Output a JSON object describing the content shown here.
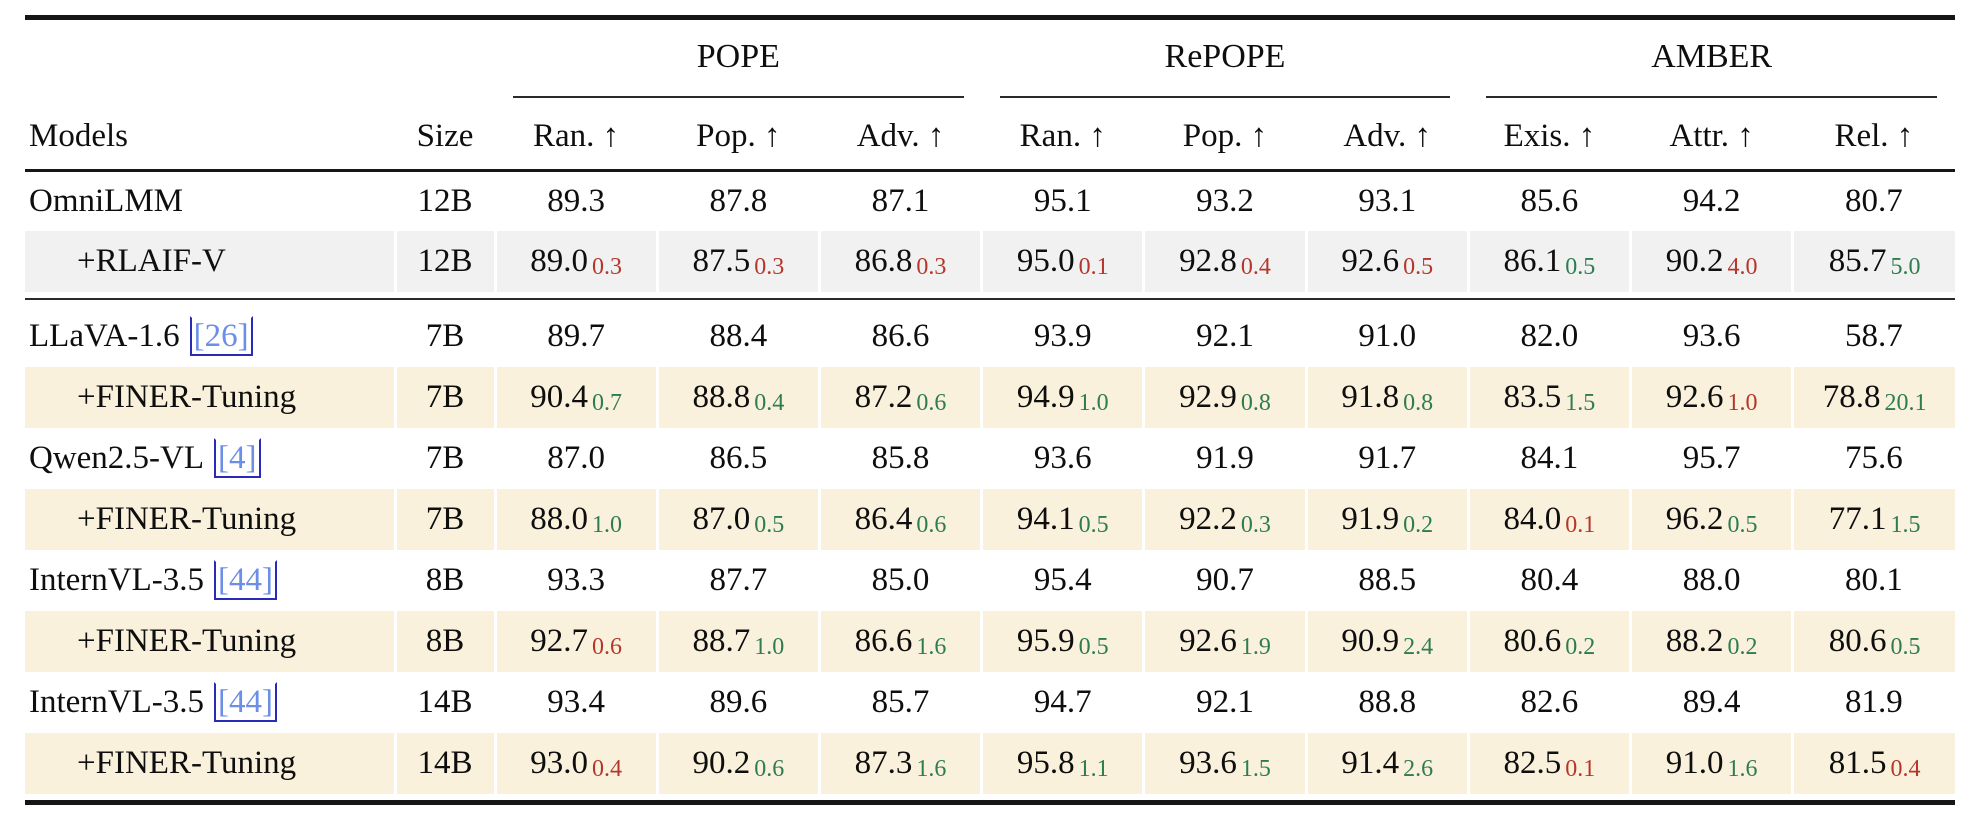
{
  "colors": {
    "highlight_gray": "#f1f1f1",
    "highlight_cream": "#faf1dd",
    "delta_up_green": "#2e7d4f",
    "delta_down_red": "#b5372c",
    "citation_text_blue": "#6b8ee6",
    "citation_box_blue": "#2a2ab8",
    "rule_black": "#161616"
  },
  "table": {
    "models_header": "Models",
    "size_header": "Size",
    "groups": [
      {
        "label": "POPE",
        "subs": [
          "Ran. ↑",
          "Pop. ↑",
          "Adv. ↑"
        ]
      },
      {
        "label": "RePOPE",
        "subs": [
          "Ran. ↑",
          "Pop. ↑",
          "Adv. ↑"
        ]
      },
      {
        "label": "AMBER",
        "subs": [
          "Exis. ↑",
          "Attr. ↑",
          "Rel. ↑"
        ]
      }
    ],
    "rows": [
      {
        "model": "OmniLMM",
        "cite": "",
        "size": "12B",
        "indent": false,
        "highlight": "none",
        "rule_after": false,
        "cells": [
          {
            "v": "89.3"
          },
          {
            "v": "87.8"
          },
          {
            "v": "87.1"
          },
          {
            "v": "95.1"
          },
          {
            "v": "93.2"
          },
          {
            "v": "93.1"
          },
          {
            "v": "85.6"
          },
          {
            "v": "94.2"
          },
          {
            "v": "80.7"
          }
        ]
      },
      {
        "model": "+RLAIF-V",
        "cite": "",
        "size": "12B",
        "indent": true,
        "highlight": "gray",
        "rule_after": true,
        "cells": [
          {
            "v": "89.0",
            "d": "0.3",
            "t": "down"
          },
          {
            "v": "87.5",
            "d": "0.3",
            "t": "down"
          },
          {
            "v": "86.8",
            "d": "0.3",
            "t": "down"
          },
          {
            "v": "95.0",
            "d": "0.1",
            "t": "down"
          },
          {
            "v": "92.8",
            "d": "0.4",
            "t": "down"
          },
          {
            "v": "92.6",
            "d": "0.5",
            "t": "down"
          },
          {
            "v": "86.1",
            "d": "0.5",
            "t": "up"
          },
          {
            "v": "90.2",
            "d": "4.0",
            "t": "down"
          },
          {
            "v": "85.7",
            "d": "5.0",
            "t": "up"
          }
        ]
      },
      {
        "model": "LLaVA-1.6",
        "cite": "[26]",
        "size": "7B",
        "indent": false,
        "highlight": "none",
        "rule_after": false,
        "cells": [
          {
            "v": "89.7"
          },
          {
            "v": "88.4"
          },
          {
            "v": "86.6"
          },
          {
            "v": "93.9"
          },
          {
            "v": "92.1"
          },
          {
            "v": "91.0"
          },
          {
            "v": "82.0"
          },
          {
            "v": "93.6"
          },
          {
            "v": "58.7"
          }
        ]
      },
      {
        "model": "+FINER-Tuning",
        "cite": "",
        "size": "7B",
        "indent": true,
        "highlight": "cream",
        "rule_after": false,
        "cells": [
          {
            "v": "90.4",
            "d": "0.7",
            "t": "up"
          },
          {
            "v": "88.8",
            "d": "0.4",
            "t": "up"
          },
          {
            "v": "87.2",
            "d": "0.6",
            "t": "up"
          },
          {
            "v": "94.9",
            "d": "1.0",
            "t": "up"
          },
          {
            "v": "92.9",
            "d": "0.8",
            "t": "up"
          },
          {
            "v": "91.8",
            "d": "0.8",
            "t": "up"
          },
          {
            "v": "83.5",
            "d": "1.5",
            "t": "up"
          },
          {
            "v": "92.6",
            "d": "1.0",
            "t": "down"
          },
          {
            "v": "78.8",
            "d": "20.1",
            "t": "up"
          }
        ]
      },
      {
        "model": "Qwen2.5-VL",
        "cite": "[4]",
        "size": "7B",
        "indent": false,
        "highlight": "none",
        "rule_after": false,
        "cells": [
          {
            "v": "87.0"
          },
          {
            "v": "86.5"
          },
          {
            "v": "85.8"
          },
          {
            "v": "93.6"
          },
          {
            "v": "91.9"
          },
          {
            "v": "91.7"
          },
          {
            "v": "84.1"
          },
          {
            "v": "95.7"
          },
          {
            "v": "75.6"
          }
        ]
      },
      {
        "model": "+FINER-Tuning",
        "cite": "",
        "size": "7B",
        "indent": true,
        "highlight": "cream",
        "rule_after": false,
        "cells": [
          {
            "v": "88.0",
            "d": "1.0",
            "t": "up"
          },
          {
            "v": "87.0",
            "d": "0.5",
            "t": "up"
          },
          {
            "v": "86.4",
            "d": "0.6",
            "t": "up"
          },
          {
            "v": "94.1",
            "d": "0.5",
            "t": "up"
          },
          {
            "v": "92.2",
            "d": "0.3",
            "t": "up"
          },
          {
            "v": "91.9",
            "d": "0.2",
            "t": "up"
          },
          {
            "v": "84.0",
            "d": "0.1",
            "t": "down"
          },
          {
            "v": "96.2",
            "d": "0.5",
            "t": "up"
          },
          {
            "v": "77.1",
            "d": "1.5",
            "t": "up"
          }
        ]
      },
      {
        "model": "InternVL-3.5",
        "cite": "[44]",
        "size": "8B",
        "indent": false,
        "highlight": "none",
        "rule_after": false,
        "cells": [
          {
            "v": "93.3"
          },
          {
            "v": "87.7"
          },
          {
            "v": "85.0"
          },
          {
            "v": "95.4"
          },
          {
            "v": "90.7"
          },
          {
            "v": "88.5"
          },
          {
            "v": "80.4"
          },
          {
            "v": "88.0"
          },
          {
            "v": "80.1"
          }
        ]
      },
      {
        "model": "+FINER-Tuning",
        "cite": "",
        "size": "8B",
        "indent": true,
        "highlight": "cream",
        "rule_after": false,
        "cells": [
          {
            "v": "92.7",
            "d": "0.6",
            "t": "down"
          },
          {
            "v": "88.7",
            "d": "1.0",
            "t": "up"
          },
          {
            "v": "86.6",
            "d": "1.6",
            "t": "up"
          },
          {
            "v": "95.9",
            "d": "0.5",
            "t": "up"
          },
          {
            "v": "92.6",
            "d": "1.9",
            "t": "up"
          },
          {
            "v": "90.9",
            "d": "2.4",
            "t": "up"
          },
          {
            "v": "80.6",
            "d": "0.2",
            "t": "up"
          },
          {
            "v": "88.2",
            "d": "0.2",
            "t": "up"
          },
          {
            "v": "80.6",
            "d": "0.5",
            "t": "up"
          }
        ]
      },
      {
        "model": "InternVL-3.5",
        "cite": "[44]",
        "size": "14B",
        "indent": false,
        "highlight": "none",
        "rule_after": false,
        "cells": [
          {
            "v": "93.4"
          },
          {
            "v": "89.6"
          },
          {
            "v": "85.7"
          },
          {
            "v": "94.7"
          },
          {
            "v": "92.1"
          },
          {
            "v": "88.8"
          },
          {
            "v": "82.6"
          },
          {
            "v": "89.4"
          },
          {
            "v": "81.9"
          }
        ]
      },
      {
        "model": "+FINER-Tuning",
        "cite": "",
        "size": "14B",
        "indent": true,
        "highlight": "cream",
        "rule_after": false,
        "cells": [
          {
            "v": "93.0",
            "d": "0.4",
            "t": "down"
          },
          {
            "v": "90.2",
            "d": "0.6",
            "t": "up"
          },
          {
            "v": "87.3",
            "d": "1.6",
            "t": "up"
          },
          {
            "v": "95.8",
            "d": "1.1",
            "t": "up"
          },
          {
            "v": "93.6",
            "d": "1.5",
            "t": "up"
          },
          {
            "v": "91.4",
            "d": "2.6",
            "t": "up"
          },
          {
            "v": "82.5",
            "d": "0.1",
            "t": "down"
          },
          {
            "v": "91.0",
            "d": "1.6",
            "t": "up"
          },
          {
            "v": "81.5",
            "d": "0.4",
            "t": "down"
          }
        ]
      }
    ]
  }
}
